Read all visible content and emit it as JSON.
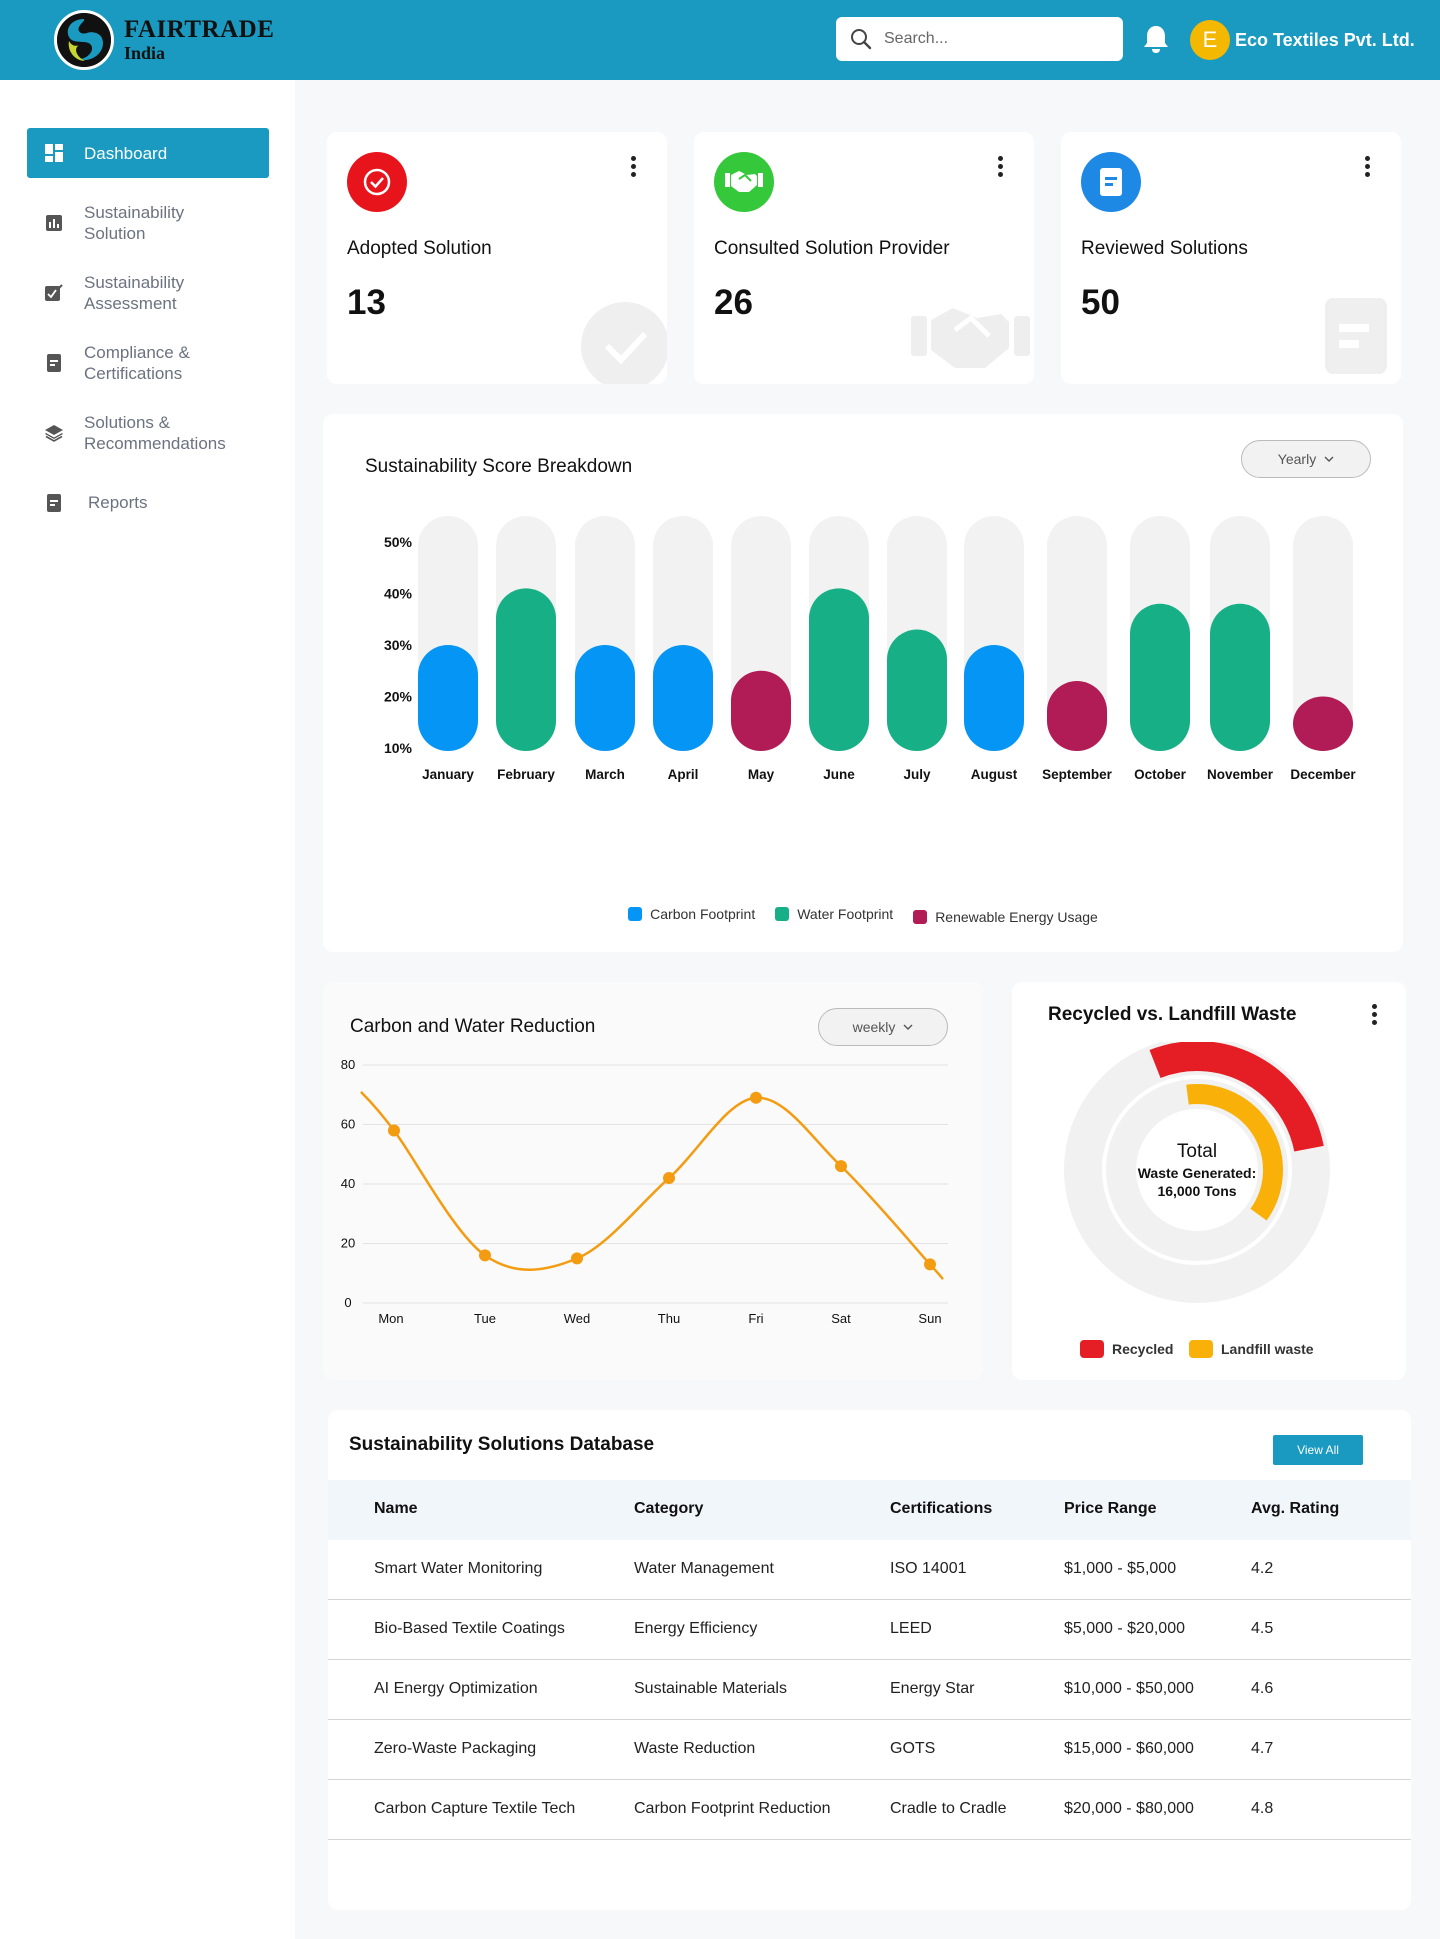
{
  "header": {
    "brand": "FAIRTRADE",
    "brand_sub": "India",
    "search_placeholder": "Search...",
    "user_initial": "E",
    "user_name": "Eco Textiles Pvt. Ltd."
  },
  "sidebar": {
    "items": [
      {
        "label": "Dashboard",
        "icon": "dashboard-icon",
        "active": true
      },
      {
        "label": "Sustainability Solution",
        "icon": "bar-chart-icon"
      },
      {
        "label": "Sustainability Assessment",
        "icon": "edit-checklist-icon"
      },
      {
        "label": "Compliance & Certifications",
        "icon": "document-icon"
      },
      {
        "label": "Solutions & Recommendations",
        "icon": "layers-icon"
      },
      {
        "label": "Reports",
        "icon": "report-icon"
      }
    ]
  },
  "kpis": [
    {
      "title": "Adopted Solution",
      "value": "13",
      "icon": "check-circle-icon",
      "color": "#e8141b"
    },
    {
      "title": "Consulted Solution Provider",
      "value": "26",
      "icon": "handshake-icon",
      "color": "#35c83a"
    },
    {
      "title": "Reviewed Solutions",
      "value": "50",
      "icon": "document-icon",
      "color": "#1e88e5"
    }
  ],
  "score_panel": {
    "title": "Sustainability Score Breakdown",
    "period": "Yearly"
  },
  "chart_data": [
    {
      "type": "bar",
      "title": "Sustainability Score Breakdown",
      "categories": [
        "January",
        "February",
        "March",
        "April",
        "May",
        "June",
        "July",
        "August",
        "September",
        "October",
        "November",
        "December"
      ],
      "values": [
        30,
        41,
        30,
        30,
        25,
        41,
        33,
        30,
        23,
        38,
        38,
        20
      ],
      "series_per_bar": [
        "Carbon Footprint",
        "Water Footprint",
        "Carbon Footprint",
        "Carbon Footprint",
        "Renewable Energy Usage",
        "Water Footprint",
        "Water Footprint",
        "Carbon Footprint",
        "Renewable Energy Usage",
        "Water Footprint",
        "Water Footprint",
        "Renewable Energy Usage"
      ],
      "y_ticks": [
        "50%",
        "40%",
        "30%",
        "20%",
        "10%"
      ],
      "ylim": [
        10,
        50
      ],
      "legend": [
        {
          "name": "Carbon Footprint",
          "color": "#0596f5"
        },
        {
          "name": "Water Footprint",
          "color": "#17b086"
        },
        {
          "name": "Renewable Energy Usage",
          "color": "#b11b56"
        }
      ],
      "legend_position": "bottom",
      "grid": false
    },
    {
      "type": "line",
      "title": "Carbon and Water Reduction",
      "x": [
        "Mon",
        "Tue",
        "Wed",
        "Thu",
        "Fri",
        "Sat",
        "Sun"
      ],
      "values": [
        58,
        16,
        15,
        42,
        69,
        46,
        13
      ],
      "y_ticks": [
        "80",
        "60",
        "40",
        "20",
        "0"
      ],
      "ylim": [
        0,
        80
      ],
      "color": "#f39c12",
      "grid": true
    },
    {
      "type": "pie",
      "title": "Recycled vs. Landfill Waste",
      "center_label": "Total",
      "center_sub": "Waste Generated:",
      "center_value": "16,000 Tons",
      "slices": [
        {
          "name": "Recycled",
          "value": 0.28,
          "color": "#e51d24"
        },
        {
          "name": "Landfill waste",
          "value": 0.37,
          "color": "#f9b10a"
        }
      ],
      "legend_position": "bottom"
    }
  ],
  "reduction_panel": {
    "title": "Carbon and Water Reduction",
    "period": "weekly"
  },
  "waste_panel": {
    "title": "Recycled vs. Landfill Waste",
    "total": "Total",
    "sub": "Waste Generated:",
    "amount": "16,000 Tons",
    "legend_recycled": "Recycled",
    "legend_landfill": "Landfill waste"
  },
  "solutions_table": {
    "title": "Sustainability Solutions Database",
    "view_all": "View All",
    "columns": [
      "Name",
      "Category",
      "Certifications",
      "Price Range",
      "Avg. Rating"
    ],
    "rows": [
      [
        "Smart Water Monitoring",
        "Water Management",
        "ISO 14001",
        "$1,000 - $5,000",
        "4.2"
      ],
      [
        "Bio-Based Textile Coatings",
        "Energy Efficiency",
        "LEED",
        "$5,000 - $20,000",
        "4.5"
      ],
      [
        "AI Energy Optimization",
        "Sustainable Materials",
        "Energy Star",
        "$10,000 - $50,000",
        "4.6"
      ],
      [
        "Zero-Waste Packaging",
        "Waste Reduction",
        "GOTS",
        "$15,000 - $60,000",
        "4.7"
      ],
      [
        "Carbon Capture Textile Tech",
        "Carbon Footprint Reduction",
        "Cradle to Cradle",
        "$20,000 - $80,000",
        "4.8"
      ]
    ]
  }
}
